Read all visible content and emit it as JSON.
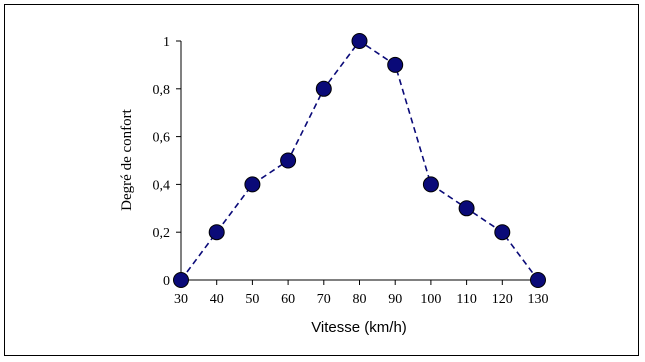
{
  "chart_data": {
    "type": "scatter",
    "xlabel": "Vitesse (km/h)",
    "ylabel": "Degré de confort",
    "x": [
      30,
      40,
      50,
      60,
      70,
      80,
      90,
      100,
      110,
      120,
      130
    ],
    "y": [
      0,
      0.2,
      0.4,
      0.5,
      0.8,
      1,
      0.9,
      0.4,
      0.3,
      0.2,
      0
    ],
    "x_ticks": [
      "30",
      "40",
      "50",
      "60",
      "70",
      "80",
      "90",
      "100",
      "110",
      "120",
      "130"
    ],
    "y_ticks": [
      "0",
      "0,2",
      "0,4",
      "0,6",
      "0,8",
      "1"
    ],
    "xlim": [
      30,
      130
    ],
    "ylim": [
      0,
      1
    ],
    "grid": false,
    "line_style": "dashed",
    "colors": {
      "marker": "#0a0a78",
      "line": "#0a0a78"
    }
  }
}
